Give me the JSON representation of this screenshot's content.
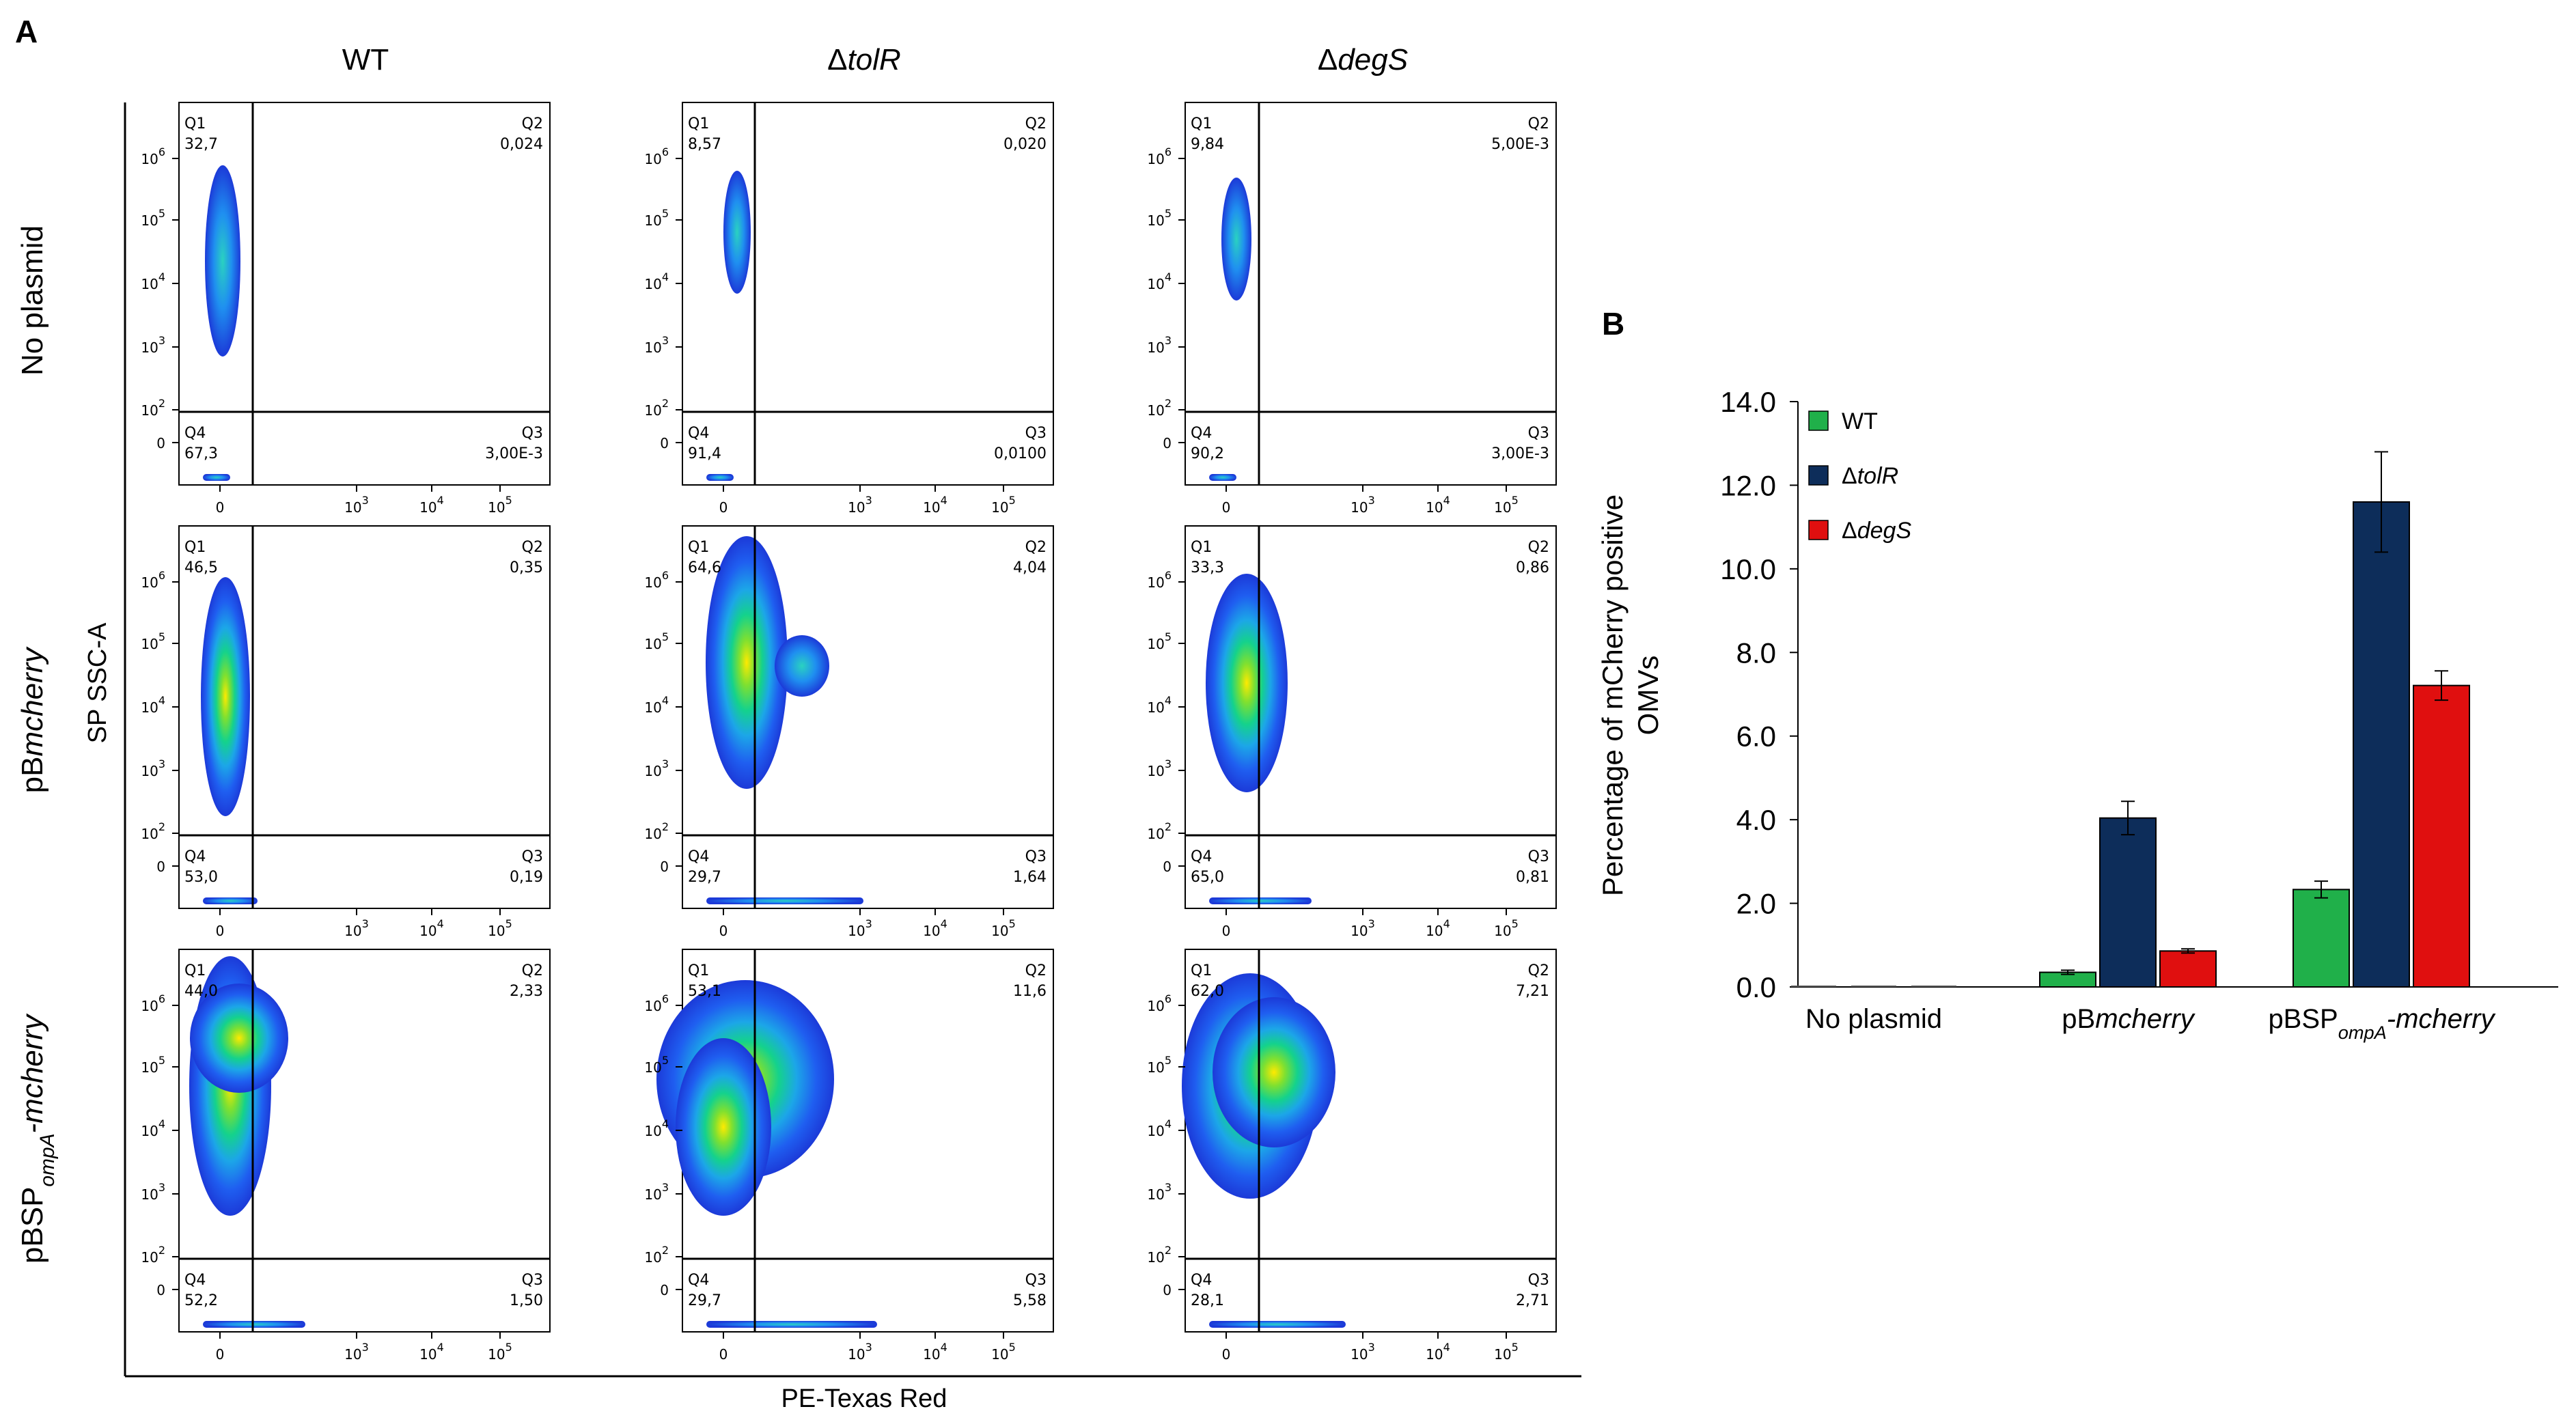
{
  "panel_a_label": "A",
  "panel_b_label": "B",
  "panel_a": {
    "columns": [
      {
        "prefix": "",
        "italic": "",
        "plain": "WT"
      },
      {
        "prefix": "Δ",
        "italic": "tolR",
        "plain": ""
      },
      {
        "prefix": "Δ",
        "italic": "degS",
        "plain": ""
      }
    ],
    "rows": [
      {
        "parts": [
          {
            "t": "No plasmid",
            "s": "n"
          }
        ]
      },
      {
        "parts": [
          {
            "t": "pB",
            "s": "n"
          },
          {
            "t": "mcherry",
            "s": "i"
          }
        ]
      },
      {
        "parts": [
          {
            "t": "pBSP",
            "s": "n"
          },
          {
            "t": "ompA",
            "s": "sub"
          },
          {
            "t": "-mcherry",
            "s": "i"
          }
        ]
      }
    ],
    "y_axis_label": "SP SSC-A",
    "x_axis_label": "PE-Texas Red",
    "y_ticks": [
      {
        "base": "10",
        "exp": "6"
      },
      {
        "base": "10",
        "exp": "5"
      },
      {
        "base": "10",
        "exp": "4"
      },
      {
        "base": "10",
        "exp": "3"
      },
      {
        "base": "10",
        "exp": "2"
      },
      {
        "base": "0",
        "exp": ""
      }
    ],
    "x_ticks": [
      {
        "base": "0",
        "exp": ""
      },
      {
        "base": "10",
        "exp": "3"
      },
      {
        "base": "10",
        "exp": "4"
      },
      {
        "base": "10",
        "exp": "5"
      }
    ],
    "quadrant_names": [
      "Q1",
      "Q2",
      "Q3",
      "Q4"
    ],
    "plots": [
      {
        "q1": "32,7",
        "q2": "0,024",
        "q3": "3,00E-3",
        "q4": "67,3"
      },
      {
        "q1": "8,57",
        "q2": "0,020",
        "q3": "0,0100",
        "q4": "91,4"
      },
      {
        "q1": "9,84",
        "q2": "5,00E-3",
        "q3": "3,00E-3",
        "q4": "90,2"
      },
      {
        "q1": "46,5",
        "q2": "0,35",
        "q3": "0,19",
        "q4": "53,0"
      },
      {
        "q1": "64,6",
        "q2": "4,04",
        "q3": "1,64",
        "q4": "29,7"
      },
      {
        "q1": "33,3",
        "q2": "0,86",
        "q3": "0,81",
        "q4": "65,0"
      },
      {
        "q1": "44,0",
        "q2": "2,33",
        "q3": "1,50",
        "q4": "52,2"
      },
      {
        "q1": "53,1",
        "q2": "11,6",
        "q3": "5,58",
        "q4": "29,7"
      },
      {
        "q1": "62,0",
        "q2": "7,21",
        "q3": "2,71",
        "q4": "28,1"
      }
    ]
  },
  "chart_data": {
    "type": "bar",
    "title": "",
    "ylabel_lines": [
      "Percentage of mCherry positive",
      "OMVs"
    ],
    "ylim": [
      0,
      14
    ],
    "yticks": [
      "0.0",
      "2.0",
      "4.0",
      "6.0",
      "8.0",
      "10.0",
      "12.0",
      "14.0"
    ],
    "categories": [
      {
        "parts": [
          {
            "t": "No plasmid",
            "s": "n"
          }
        ]
      },
      {
        "parts": [
          {
            "t": "pB",
            "s": "n"
          },
          {
            "t": "mcherry",
            "s": "i"
          }
        ]
      },
      {
        "parts": [
          {
            "t": "pBSP",
            "s": "n"
          },
          {
            "t": "ompA",
            "s": "sub"
          },
          {
            "t": "-mcherry",
            "s": "i"
          }
        ]
      }
    ],
    "series": [
      {
        "name": "WT",
        "legend_parts": [
          {
            "t": "WT",
            "s": "n"
          }
        ],
        "color": "#20b04a",
        "values": [
          0.0,
          0.35,
          2.33
        ],
        "errors": [
          0.0,
          0.05,
          0.2
        ]
      },
      {
        "name": "ΔtolR",
        "legend_parts": [
          {
            "t": "Δ",
            "s": "n"
          },
          {
            "t": "tolR",
            "s": "i"
          }
        ],
        "color": "#0d2d5a",
        "values": [
          0.0,
          4.04,
          11.6
        ],
        "errors": [
          0.0,
          0.4,
          1.2
        ]
      },
      {
        "name": "ΔdegS",
        "legend_parts": [
          {
            "t": "Δ",
            "s": "n"
          },
          {
            "t": "degS",
            "s": "i"
          }
        ],
        "color": "#e00f0f",
        "values": [
          0.0,
          0.86,
          7.21
        ],
        "errors": [
          0.0,
          0.05,
          0.35
        ]
      }
    ],
    "legend_position": "top-left"
  }
}
